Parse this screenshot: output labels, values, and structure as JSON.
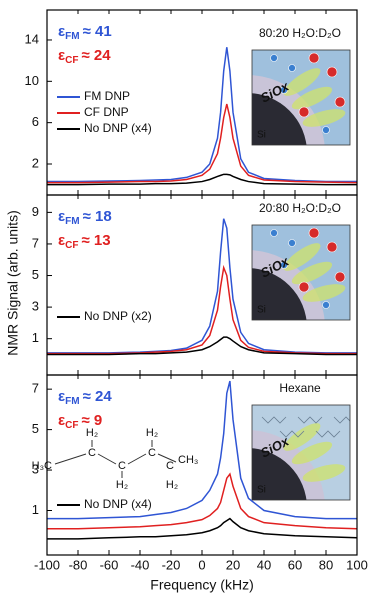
{
  "chart_data": [
    {
      "type": "line",
      "annotations": [
        {
          "symbol": "ε",
          "subscript": "FM",
          "text": "≈ 41",
          "color": "#2f55d4"
        },
        {
          "symbol": "ε",
          "subscript": "CF",
          "text": "≈ 24",
          "color": "#e02020"
        }
      ],
      "inset_title": "80:20 H₂O:D₂O",
      "inset": {
        "oxide": "SiOx",
        "substrate": "Si"
      },
      "x": [
        -100,
        -80,
        -60,
        -40,
        -30,
        -20,
        -10,
        0,
        5,
        10,
        12,
        14,
        16,
        18,
        20,
        25,
        30,
        40,
        60,
        80,
        100
      ],
      "xlim": [
        -100,
        100
      ],
      "ylim": [
        -1,
        16.9
      ],
      "yticks": [
        2,
        6,
        10,
        14
      ],
      "series": [
        {
          "name": "FM DNP",
          "color": "#2f55d4",
          "values": [
            0.3,
            0.3,
            0.35,
            0.4,
            0.45,
            0.5,
            0.7,
            1.2,
            2.0,
            4.5,
            7,
            11,
            13.3,
            11,
            7,
            2.5,
            1.2,
            0.6,
            0.4,
            0.3,
            0.3
          ]
        },
        {
          "name": "CF DNP",
          "color": "#e02020",
          "values": [
            0.2,
            0.2,
            0.25,
            0.3,
            0.3,
            0.35,
            0.5,
            0.9,
            1.5,
            3,
            4.5,
            6.5,
            7.8,
            6.5,
            4.5,
            1.8,
            0.9,
            0.45,
            0.3,
            0.25,
            0.2
          ]
        },
        {
          "name": "No DNP (x4)",
          "color": "#000000",
          "values": [
            0,
            0,
            0.05,
            0.05,
            0.1,
            0.1,
            0.15,
            0.3,
            0.5,
            0.8,
            0.9,
            1.0,
            1.0,
            0.95,
            0.8,
            0.5,
            0.3,
            0.1,
            0.05,
            0,
            0
          ]
        }
      ]
    },
    {
      "type": "line",
      "ylabel": "NMR Signal (arb. units)",
      "annotations": [
        {
          "symbol": "ε",
          "subscript": "FM",
          "text": "≈ 18",
          "color": "#2f55d4"
        },
        {
          "symbol": "ε",
          "subscript": "CF",
          "text": "≈ 13",
          "color": "#e02020"
        }
      ],
      "inset_title": "20:80 H₂O:D₂O",
      "inset": {
        "oxide": "SiOx",
        "substrate": "Si"
      },
      "x": [
        -100,
        -80,
        -60,
        -40,
        -30,
        -20,
        -10,
        0,
        5,
        10,
        12,
        14,
        16,
        18,
        20,
        25,
        30,
        40,
        60,
        80,
        100
      ],
      "xlim": [
        -100,
        100
      ],
      "ylim": [
        -1.3,
        10.1
      ],
      "yticks": [
        1,
        3,
        5,
        7,
        9
      ],
      "series": [
        {
          "color": "#2f55d4",
          "values": [
            0.1,
            0.1,
            0.1,
            0.15,
            0.2,
            0.25,
            0.4,
            0.9,
            1.8,
            4,
            6.5,
            8.6,
            8.0,
            5.5,
            3.5,
            1.4,
            0.7,
            0.3,
            0.15,
            0.1,
            0.1
          ]
        },
        {
          "color": "#e02020",
          "values": [
            0.05,
            0.05,
            0.05,
            0.1,
            0.15,
            0.2,
            0.3,
            0.6,
            1.2,
            2.8,
            4.3,
            5.5,
            5.0,
            3.5,
            2.2,
            0.9,
            0.45,
            0.2,
            0.1,
            0.05,
            0.05
          ]
        },
        {
          "name": "No DNP (x2)",
          "color": "#000000",
          "values": [
            0,
            0,
            0,
            0.05,
            0.05,
            0.1,
            0.15,
            0.3,
            0.5,
            0.8,
            0.95,
            1.1,
            1.1,
            1.0,
            0.85,
            0.5,
            0.3,
            0.1,
            0.05,
            0,
            0
          ]
        }
      ]
    },
    {
      "type": "line",
      "xlabel": "Frequency (kHz)",
      "annotations": [
        {
          "symbol": "ε",
          "subscript": "FM",
          "text": "≈ 24",
          "color": "#2f55d4"
        },
        {
          "symbol": "ε",
          "subscript": "CF",
          "text": "≈ 9",
          "color": "#e02020"
        }
      ],
      "inset_title": "Hexane",
      "inset": {
        "oxide": "SiOx",
        "substrate": "Si"
      },
      "structure": {
        "ends": [
          "H₃C",
          "CH₃"
        ],
        "carbons": [
          "C",
          "C",
          "C",
          "C"
        ],
        "hydrogens": [
          "H₂",
          "H₂",
          "H₂",
          "H₂"
        ]
      },
      "x": [
        -100,
        -80,
        -60,
        -40,
        -30,
        -20,
        -10,
        0,
        5,
        10,
        12,
        14,
        16,
        18,
        20,
        25,
        30,
        40,
        60,
        80,
        100
      ],
      "xlim": [
        -100,
        100
      ],
      "xticks": [
        -100,
        -80,
        -60,
        -40,
        -20,
        0,
        20,
        40,
        60,
        80,
        100
      ],
      "ylim": [
        -1.2,
        7.7
      ],
      "yticks": [
        1,
        3,
        5,
        7
      ],
      "series": [
        {
          "color": "#2f55d4",
          "values": [
            0.6,
            0.6,
            0.65,
            0.7,
            0.8,
            0.9,
            1.1,
            1.5,
            2.0,
            2.8,
            3.6,
            4.8,
            6.8,
            7.4,
            5.5,
            2.6,
            1.6,
            1.0,
            0.7,
            0.6,
            0.6
          ]
        },
        {
          "color": "#e02020",
          "values": [
            0.1,
            0.1,
            0.15,
            0.2,
            0.25,
            0.3,
            0.4,
            0.55,
            0.75,
            1.1,
            1.4,
            2.0,
            2.6,
            2.8,
            2.2,
            1.1,
            0.7,
            0.4,
            0.25,
            0.15,
            0.1
          ]
        },
        {
          "name": "No DNP (x4)",
          "color": "#000000",
          "values": [
            -0.4,
            -0.4,
            -0.35,
            -0.3,
            -0.3,
            -0.25,
            -0.2,
            -0.1,
            0,
            0.15,
            0.25,
            0.4,
            0.5,
            0.6,
            0.45,
            0.15,
            0,
            -0.15,
            -0.25,
            -0.3,
            -0.35
          ]
        }
      ]
    }
  ]
}
